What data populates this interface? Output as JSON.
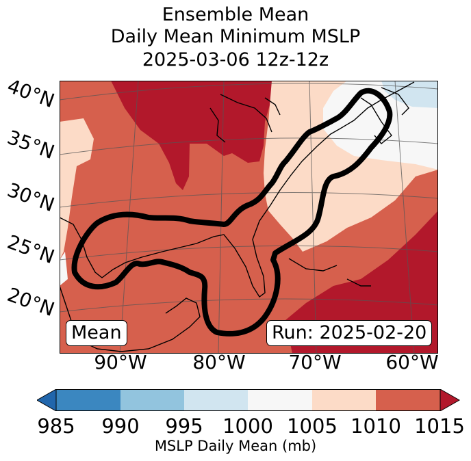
{
  "title": {
    "line1": "Ensemble Mean",
    "line2": "Daily Mean Minimum MSLP",
    "line3": "2025-03-06 12z-12z"
  },
  "map": {
    "latitude_labels": [
      "40°N",
      "35°N",
      "30°N",
      "25°N",
      "20°N"
    ],
    "longitude_labels": [
      "90°W",
      "80°W",
      "70°W",
      "60°W"
    ],
    "mean_label": "Mean",
    "run_label": "Run: 2025-02-20",
    "pressure_bin_colors": {
      "985-990": "#3b87c0",
      "990-995": "#92c4de",
      "995-1000": "#d1e5f0",
      "1000-1005": "#f7f7f7",
      "1005-1010": "#fcdbc7",
      "1010-1015": "#d6604d",
      "above-1015": "#b2182b",
      "below-985": "#2166ac"
    },
    "outline_color": "#000000"
  },
  "colorbar": {
    "ticks": [
      "985",
      "990",
      "995",
      "1000",
      "1005",
      "1010",
      "1015"
    ],
    "label": "MSLP Daily Mean (mb)"
  }
}
